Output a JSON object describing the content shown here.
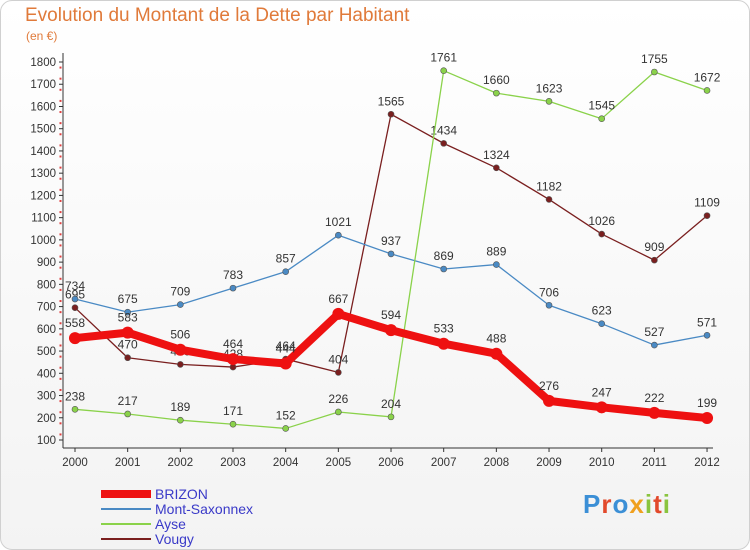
{
  "title": "Evolution du Montant de la Dette par Habitant",
  "unit_label": "(en €)",
  "logo": {
    "text": "Proxiti",
    "letters": [
      {
        "ch": "P",
        "color": "#3b8fd6"
      },
      {
        "ch": "r",
        "color": "#e2492b"
      },
      {
        "ch": "o",
        "color": "#3b8fd6"
      },
      {
        "ch": "x",
        "color": "#f0a01e"
      },
      {
        "ch": "i",
        "color": "#8ac43f"
      },
      {
        "ch": "t",
        "color": "#e2492b"
      },
      {
        "ch": "i",
        "color": "#8ac43f"
      }
    ]
  },
  "chart_data": {
    "type": "line",
    "title": "Evolution du Montant de la Dette par Habitant",
    "ylabel": "(en €)",
    "xlabel": "",
    "ylim": [
      100,
      1800
    ],
    "yticks": [
      100,
      200,
      300,
      400,
      500,
      600,
      700,
      800,
      900,
      1000,
      1100,
      1200,
      1300,
      1400,
      1500,
      1600,
      1700,
      1800
    ],
    "grid": false,
    "legend_position": "bottom-left",
    "x": [
      "2000",
      "2001",
      "2002",
      "2003",
      "2004",
      "2005",
      "2006",
      "2007",
      "2008",
      "2009",
      "2010",
      "2011",
      "2012"
    ],
    "series": [
      {
        "name": "Vougy",
        "color": "#7a1f1f",
        "values": [
          695,
          470,
          440,
          428,
          464,
          404,
          1565,
          1434,
          1324,
          1182,
          1026,
          909,
          1109
        ]
      },
      {
        "name": "Mont-Saxonnex",
        "color": "#4a8ac4",
        "values": [
          734,
          675,
          709,
          783,
          857,
          1021,
          937,
          869,
          889,
          706,
          623,
          527,
          571
        ]
      },
      {
        "name": "Ayse",
        "color": "#8ad24a",
        "values": [
          238,
          217,
          189,
          171,
          152,
          226,
          204,
          1761,
          1660,
          1623,
          1545,
          1755,
          1672
        ]
      },
      {
        "name": "BRIZON",
        "color": "#ee1111",
        "values": [
          558,
          583,
          506,
          464,
          444,
          667,
          594,
          533,
          488,
          276,
          247,
          222,
          199
        ]
      }
    ],
    "legend_order": [
      "BRIZON",
      "Mont-Saxonnex",
      "Ayse",
      "Vougy"
    ]
  }
}
